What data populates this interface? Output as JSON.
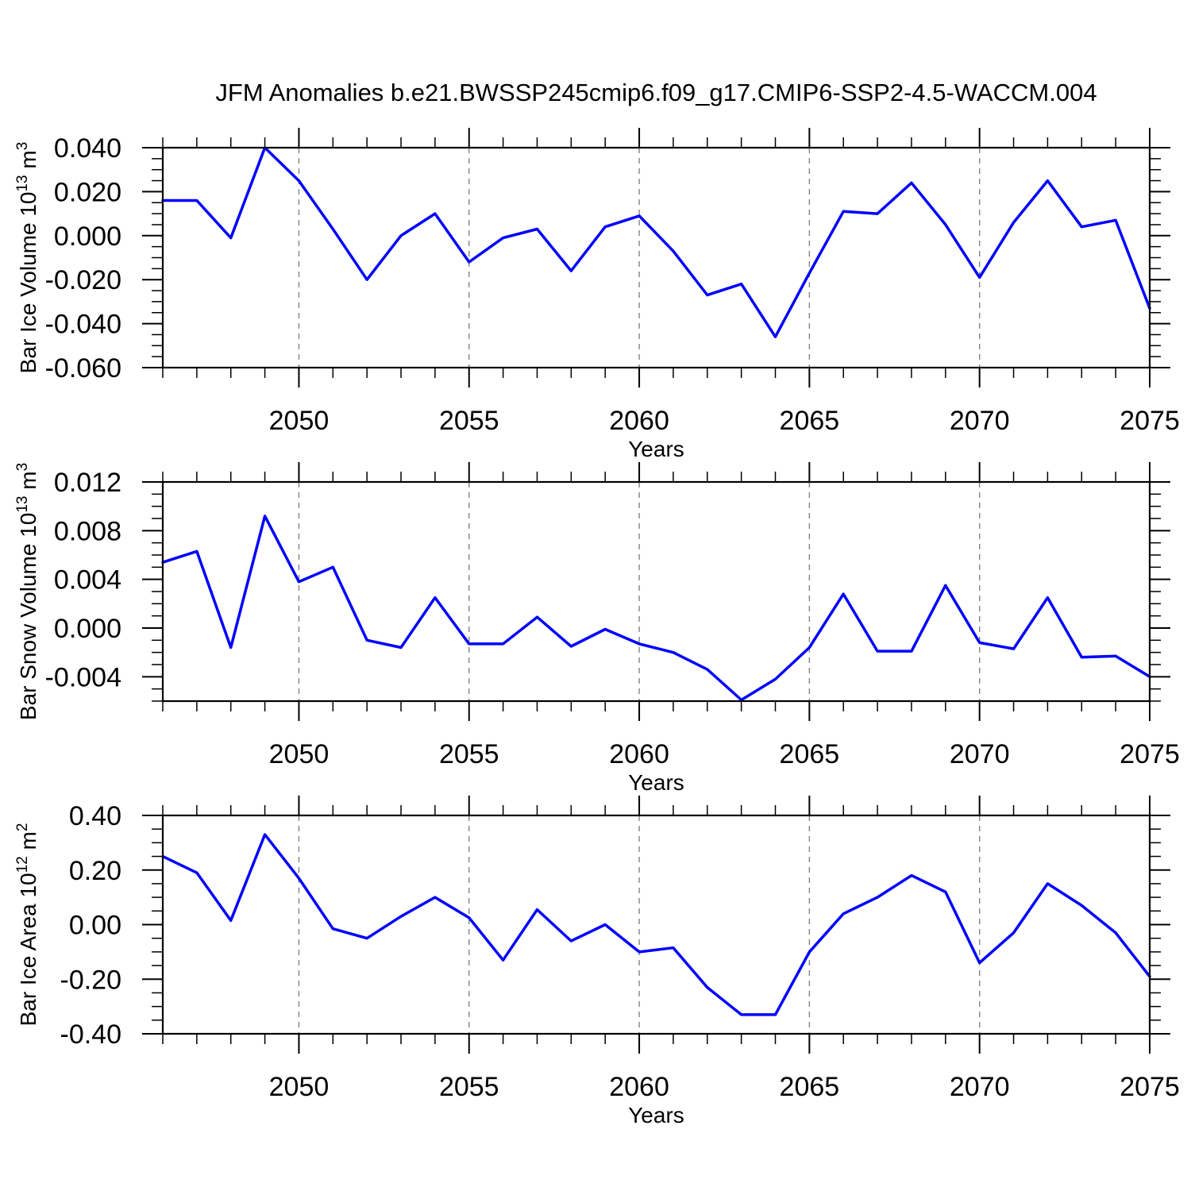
{
  "title": "JFM Anomalies b.e21.BWSSP245cmip6.f09_g17.CMIP6-SSP2-4.5-WACCM.004",
  "line_color": "#0000ff",
  "grid_color": "#848484",
  "frame_color": "#000000",
  "background_color": "#ffffff",
  "chart_data": [
    {
      "id": "bar-ice-volume",
      "type": "line",
      "xlabel": "Years",
      "ylabel_text": "Bar Ice Volume 10^13 m^3",
      "ylabel_parts": [
        [
          "Bar Ice Volume 10",
          false
        ],
        [
          "13",
          true
        ],
        [
          " m",
          false
        ],
        [
          "3",
          true
        ]
      ],
      "x": [
        2046,
        2047,
        2048,
        2049,
        2050,
        2051,
        2052,
        2053,
        2054,
        2055,
        2056,
        2057,
        2058,
        2059,
        2060,
        2061,
        2062,
        2063,
        2064,
        2065,
        2066,
        2067,
        2068,
        2069,
        2070,
        2071,
        2072,
        2073,
        2074,
        2075
      ],
      "values": [
        0.016,
        0.016,
        -0.001,
        0.04,
        0.025,
        0.003,
        -0.02,
        0.0,
        0.01,
        -0.012,
        -0.001,
        0.003,
        -0.016,
        0.004,
        0.009,
        -0.007,
        -0.027,
        -0.022,
        -0.046,
        -0.017,
        0.011,
        0.01,
        0.024,
        0.005,
        -0.019,
        0.006,
        0.025,
        0.004,
        0.007,
        -0.033
      ],
      "xlim": [
        2046,
        2075
      ],
      "ylim": [
        -0.06,
        0.04
      ],
      "xtick_major": [
        2050,
        2055,
        2060,
        2065,
        2070,
        2075
      ],
      "xtick_labels": [
        "2050",
        "2055",
        "2060",
        "2065",
        "2070",
        "2075"
      ],
      "xtick_minor_step": 1,
      "ytick_major": [
        0.04,
        0.02,
        0.0,
        -0.02,
        -0.04,
        -0.06
      ],
      "ytick_labels": [
        "0.040",
        "0.020",
        "0.000",
        "-0.020",
        "-0.040",
        "-0.060"
      ],
      "ytick_minor_step": 0.005,
      "grid_x": [
        2050,
        2055,
        2060,
        2065,
        2070
      ],
      "grid": "vertical-dashed",
      "legend": "none"
    },
    {
      "id": "bar-snow-volume",
      "type": "line",
      "xlabel": "Years",
      "ylabel_text": "Bar Snow Volume 10^13 m^3",
      "ylabel_parts": [
        [
          "Bar Snow Volume 10",
          false
        ],
        [
          "13",
          true
        ],
        [
          " m",
          false
        ],
        [
          "3",
          true
        ]
      ],
      "x": [
        2046,
        2047,
        2048,
        2049,
        2050,
        2051,
        2052,
        2053,
        2054,
        2055,
        2056,
        2057,
        2058,
        2059,
        2060,
        2061,
        2062,
        2063,
        2064,
        2065,
        2066,
        2067,
        2068,
        2069,
        2070,
        2071,
        2072,
        2073,
        2074,
        2075
      ],
      "values": [
        0.0054,
        0.0063,
        -0.0016,
        0.0092,
        0.0038,
        0.005,
        -0.001,
        -0.0016,
        0.0025,
        -0.0013,
        -0.0013,
        0.0009,
        -0.0015,
        -0.0001,
        -0.0013,
        -0.002,
        -0.0034,
        -0.0059,
        -0.0042,
        -0.0016,
        0.0028,
        -0.0019,
        -0.0019,
        0.0035,
        -0.0012,
        -0.0017,
        0.0025,
        -0.0024,
        -0.0023,
        -0.004
      ],
      "xlim": [
        2046,
        2075
      ],
      "ylim": [
        -0.006,
        0.012
      ],
      "xtick_major": [
        2050,
        2055,
        2060,
        2065,
        2070,
        2075
      ],
      "xtick_labels": [
        "2050",
        "2055",
        "2060",
        "2065",
        "2070",
        "2075"
      ],
      "xtick_minor_step": 1,
      "ytick_major": [
        0.012,
        0.008,
        0.004,
        0.0,
        -0.004
      ],
      "ytick_labels": [
        "0.012",
        "0.008",
        "0.004",
        "0.000",
        "-0.004"
      ],
      "ytick_minor_step": 0.001,
      "grid_x": [
        2050,
        2055,
        2060,
        2065,
        2070
      ],
      "grid": "vertical-dashed",
      "legend": "none"
    },
    {
      "id": "bar-ice-area",
      "type": "line",
      "xlabel": "Years",
      "ylabel_text": "Bar Ice Area 10^12 m^2",
      "ylabel_parts": [
        [
          "Bar Ice Area 10",
          false
        ],
        [
          "12",
          true
        ],
        [
          " m",
          false
        ],
        [
          "2",
          true
        ]
      ],
      "x": [
        2046,
        2047,
        2048,
        2049,
        2050,
        2051,
        2052,
        2053,
        2054,
        2055,
        2056,
        2057,
        2058,
        2059,
        2060,
        2061,
        2062,
        2063,
        2064,
        2065,
        2066,
        2067,
        2068,
        2069,
        2070,
        2071,
        2072,
        2073,
        2074,
        2075
      ],
      "values": [
        0.25,
        0.19,
        0.015,
        0.33,
        0.17,
        -0.015,
        -0.05,
        0.03,
        0.1,
        0.025,
        -0.13,
        0.055,
        -0.06,
        0.0,
        -0.1,
        -0.085,
        -0.23,
        -0.33,
        -0.33,
        -0.1,
        0.04,
        0.1,
        0.18,
        0.12,
        -0.14,
        -0.03,
        0.15,
        0.07,
        -0.03,
        -0.19
      ],
      "xlim": [
        2046,
        2075
      ],
      "ylim": [
        -0.4,
        0.4
      ],
      "xtick_major": [
        2050,
        2055,
        2060,
        2065,
        2070,
        2075
      ],
      "xtick_labels": [
        "2050",
        "2055",
        "2060",
        "2065",
        "2070",
        "2075"
      ],
      "xtick_minor_step": 1,
      "ytick_major": [
        0.4,
        0.2,
        0.0,
        -0.2,
        -0.4
      ],
      "ytick_labels": [
        "0.40",
        "0.20",
        "0.00",
        "-0.20",
        "-0.40"
      ],
      "ytick_minor_step": 0.05,
      "grid_x": [
        2050,
        2055,
        2060,
        2065,
        2070
      ],
      "grid": "vertical-dashed",
      "legend": "none"
    }
  ]
}
